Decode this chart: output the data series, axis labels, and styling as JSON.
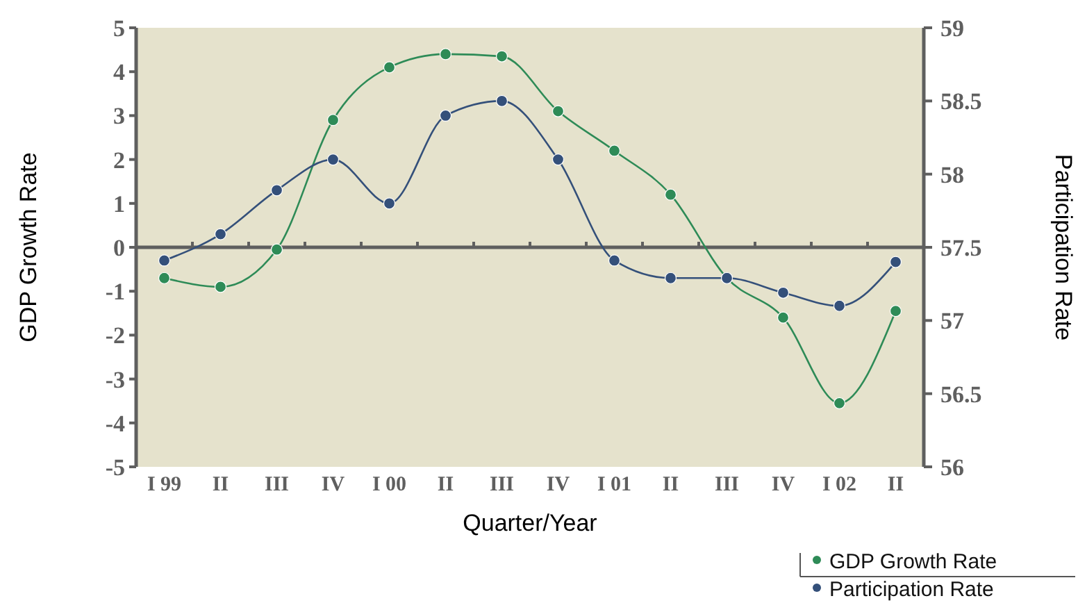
{
  "chart_data": {
    "type": "line",
    "xlabel": "Quarter/Year",
    "ylabel": "GDP Growth Rate",
    "y2label": "Participation Rate",
    "categories": [
      "I 99",
      "II",
      "III",
      "IV",
      "I 00",
      "II",
      "III",
      "IV",
      "I 01",
      "II",
      "III",
      "IV",
      "I 02",
      "II"
    ],
    "series": [
      {
        "name": "GDP Growth Rate",
        "color": "#2e8b57",
        "values": [
          -0.7,
          -0.9,
          -0.05,
          2.9,
          4.1,
          4.4,
          4.35,
          3.1,
          2.2,
          1.2,
          -0.7,
          -1.6,
          -3.55,
          -1.45
        ]
      },
      {
        "name": "Participation Rate",
        "color": "#34507a",
        "axis": "y2",
        "values": [
          57.41,
          57.59,
          57.89,
          58.1,
          57.8,
          58.4,
          58.5,
          58.1,
          57.41,
          57.29,
          57.29,
          57.19,
          57.1,
          57.4
        ]
      }
    ],
    "ylim": [
      -5,
      5
    ],
    "yticks": [
      -5,
      -4,
      -3,
      -2,
      -1,
      0,
      1,
      2,
      3,
      4,
      5
    ],
    "y2lim": [
      56,
      59
    ],
    "y2ticks": [
      56,
      56.5,
      57,
      57.5,
      58,
      58.5,
      59
    ],
    "marker": "circle",
    "line_style": "solid",
    "legend": "bottom right"
  }
}
